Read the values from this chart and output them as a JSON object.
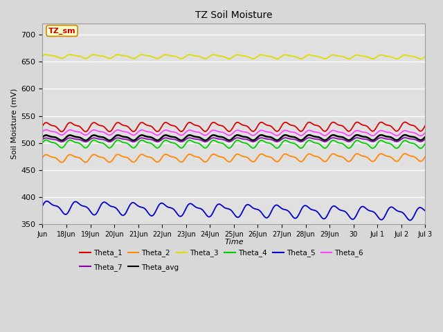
{
  "title": "TZ Soil Moisture",
  "xlabel": "Time",
  "ylabel": "Soil Moisture (mV)",
  "ylim": [
    350,
    720
  ],
  "yticks": [
    350,
    400,
    450,
    500,
    550,
    600,
    650,
    700
  ],
  "bg_color": "#d8d8d8",
  "plot_bg_color": "#e0e0e0",
  "series": {
    "Theta_1": {
      "color": "#dd0000",
      "base": 530,
      "amp": 7,
      "period": 1.0,
      "trend": 1.0
    },
    "Theta_2": {
      "color": "#ff8800",
      "base": 472,
      "amp": 6,
      "period": 1.0,
      "trend": 2.0
    },
    "Theta_3": {
      "color": "#dddd00",
      "base": 660,
      "amp": 3,
      "period": 1.0,
      "trend": -1.0
    },
    "Theta_4": {
      "color": "#00cc00",
      "base": 499,
      "amp": 6,
      "period": 1.0,
      "trend": -1.0
    },
    "Theta_5": {
      "color": "#0000cc",
      "base": 382,
      "amp": 10,
      "period": 1.2,
      "trend": -12.0
    },
    "Theta_6": {
      "color": "#ff44ff",
      "base": 520,
      "amp": 4,
      "period": 1.0,
      "trend": -1.5
    },
    "Theta_7": {
      "color": "#8800aa",
      "base": 506,
      "amp": 3,
      "period": 1.0,
      "trend": 0.5
    },
    "Theta_avg": {
      "color": "#000000",
      "base": 510,
      "amp": 4,
      "period": 1.0,
      "trend": 0.5
    }
  },
  "n_days": 16.0,
  "n_points": 500,
  "xtick_labels": [
    "Jun",
    "18Jun",
    "19Jun",
    "20Jun",
    "21Jun",
    "22Jun",
    "23Jun",
    "24Jun",
    "25Jun",
    "26Jun",
    "27Jun",
    "28Jun",
    "29Jun",
    "30",
    "Jul 1",
    "Jul 2",
    "Jul 3"
  ],
  "xtick_positions": [
    0,
    1,
    2,
    3,
    4,
    5,
    6,
    7,
    8,
    9,
    10,
    11,
    12,
    13,
    14,
    15,
    16
  ],
  "label_box": "TZ_sm",
  "label_box_color": "#ffffcc",
  "label_box_text_color": "#cc0000"
}
